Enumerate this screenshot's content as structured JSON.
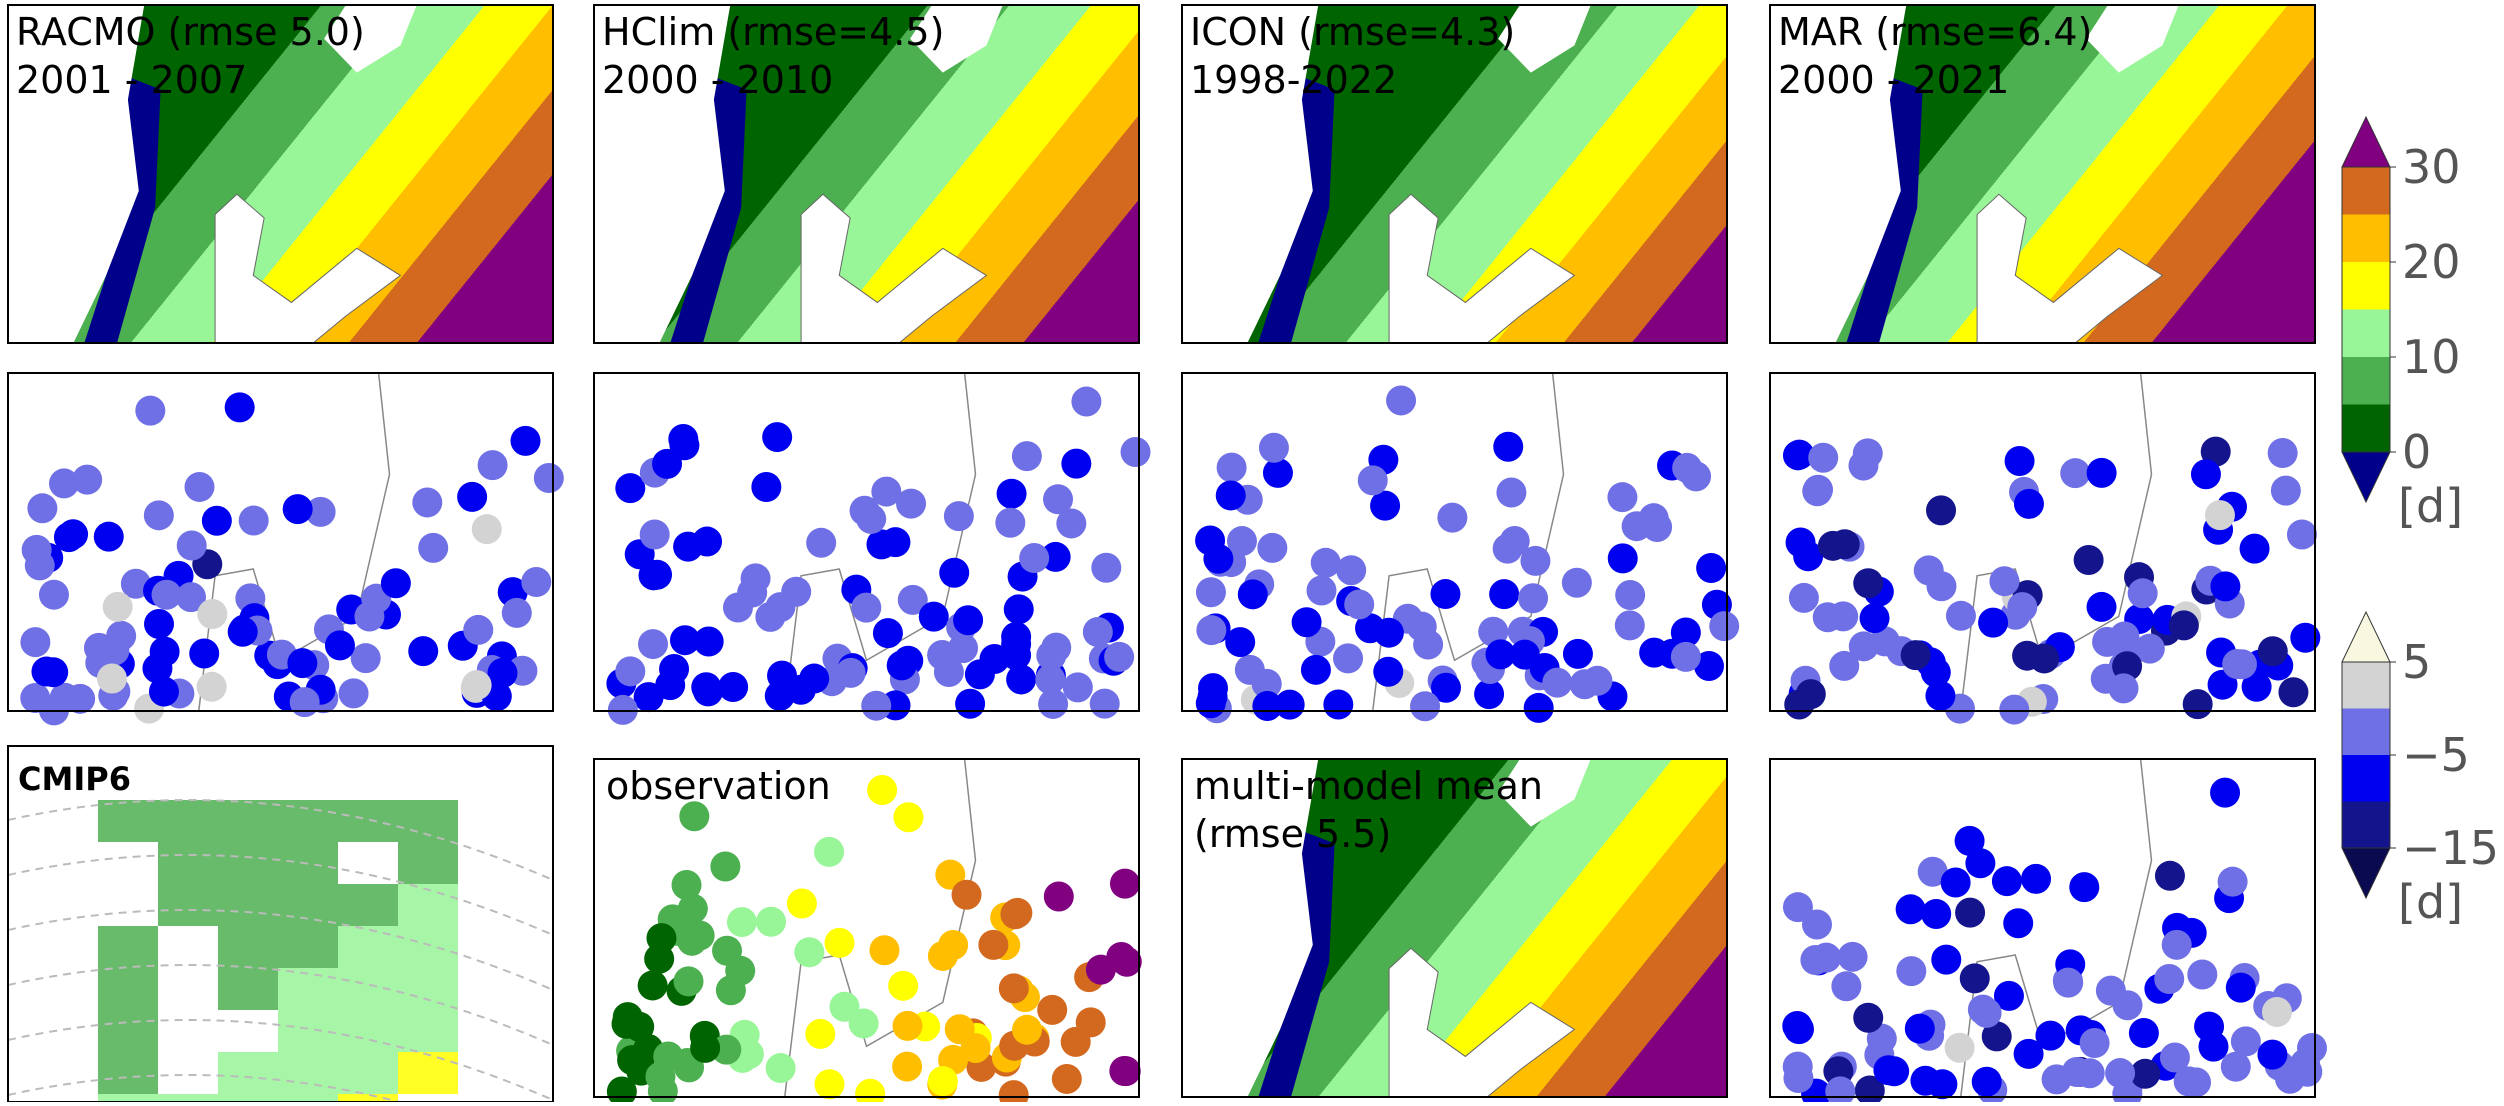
{
  "panels": [
    {
      "title": "RACMO (rmse 5.0)",
      "period": "2001 - 2007"
    },
    {
      "title": "HClim (rmse=4.5)",
      "period": "2000 - 2010"
    },
    {
      "title": "ICON (rmse=4.3)",
      "period": "1998-2022"
    },
    {
      "title": "MAR (rmse=6.4)",
      "period": "2000 - 2021"
    }
  ],
  "bottom": {
    "cmip": "CMIP6",
    "observation": "observation",
    "mean": "multi-model mean",
    "mean_rmse": "(rmse 5.5)"
  },
  "colorbars": [
    {
      "bounds": [
        0,
        5,
        10,
        15,
        20,
        25,
        30
      ],
      "colors": [
        "#006400",
        "#4caf50",
        "#98f598",
        "#ffff00",
        "#ffbf00",
        "#d2691e"
      ],
      "under": "#00008b",
      "over": "#800080",
      "ticks": [
        0,
        10,
        20,
        30
      ],
      "unit": "[d]"
    },
    {
      "bounds": [
        -15,
        -10,
        -5,
        0,
        5
      ],
      "colors": [
        "#14148c",
        "#0000f0",
        "#7070e6",
        "#d3d3d3"
      ],
      "under": "#0a0a50",
      "over": "#f8f8e0",
      "ticks": [
        5,
        {
          "value": -5,
          "label": "−5"
        },
        {
          "value": -15,
          "label": "−15"
        }
      ],
      "unit": "[d]"
    }
  ]
}
